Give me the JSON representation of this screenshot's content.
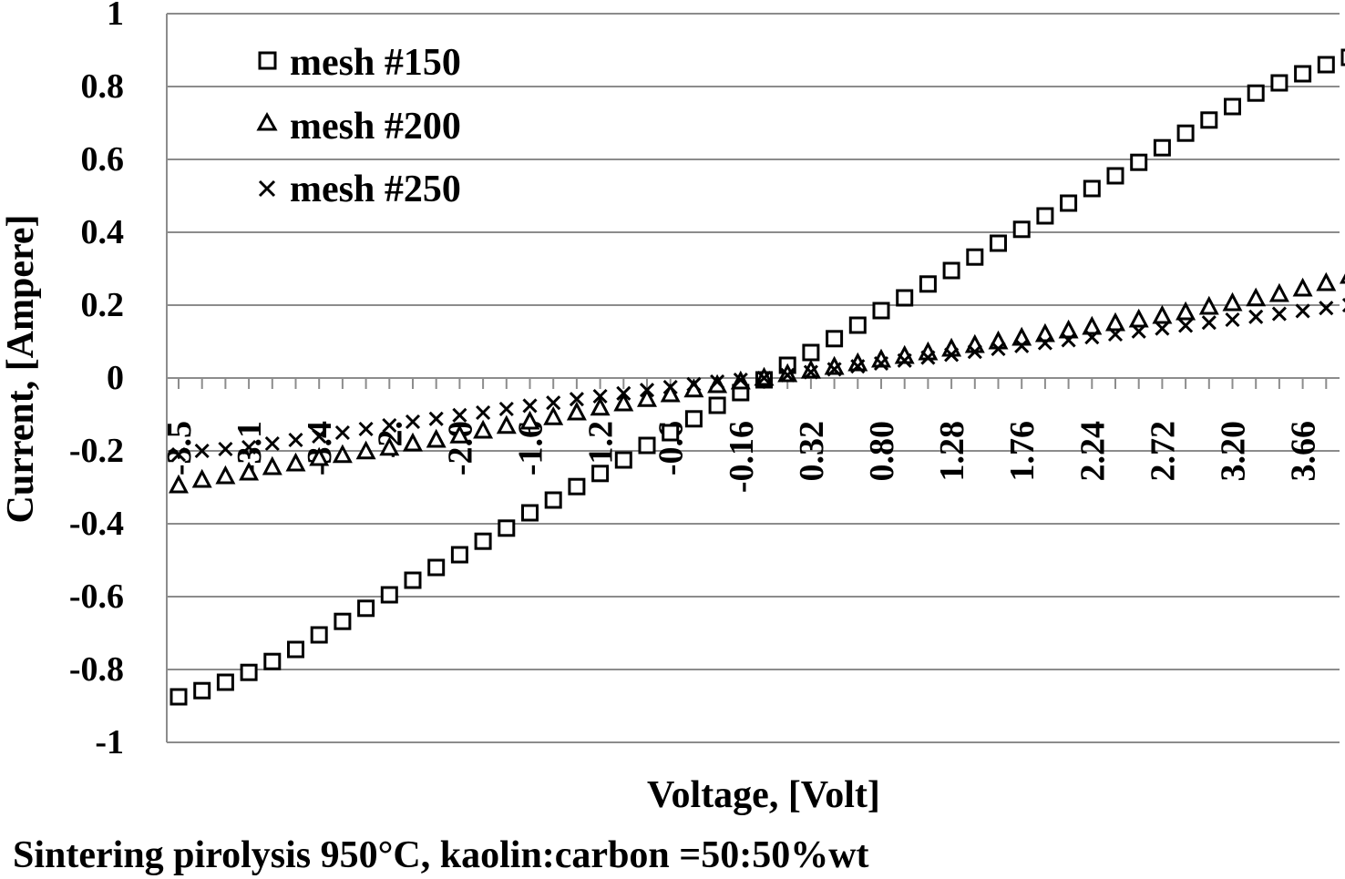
{
  "chart_data": {
    "type": "scatter",
    "title": "",
    "xlabel": "Voltage, [Volt]",
    "ylabel": "Current, [Ampere]",
    "caption": "Sintering pirolysis 950°C, kaolin:carbon =50:50%wt",
    "ylim": [
      -1,
      1
    ],
    "yticks": [
      "1",
      "0.8",
      "0.6",
      "0.4",
      "0.2",
      "0",
      "-0.2",
      "-0.4",
      "-0.6",
      "-0.8",
      "-1"
    ],
    "ytick_values": [
      1,
      0.8,
      0.6,
      0.4,
      0.2,
      0,
      -0.2,
      -0.4,
      -0.6,
      -0.8,
      -1
    ],
    "xtick_labels": [
      "-3.5",
      "-3.1",
      "-3.4",
      "-2.",
      "-2.0",
      "-1.6",
      "-1.2",
      "-0.6",
      "-0.16",
      "0.32",
      "0.80",
      "1.28",
      "1.76",
      "2.24",
      "2.72",
      "3.20",
      "3.66"
    ],
    "xtick_positions": [
      0,
      3,
      6,
      9,
      12,
      15,
      18,
      21,
      24,
      27,
      30,
      33,
      36,
      39,
      42,
      45,
      48
    ],
    "n_points": 51,
    "grid": true,
    "legend_position": "top-left",
    "series": [
      {
        "name": "mesh #150",
        "marker": "square",
        "values": [
          -0.875,
          -0.858,
          -0.835,
          -0.808,
          -0.778,
          -0.745,
          -0.705,
          -0.668,
          -0.632,
          -0.595,
          -0.555,
          -0.52,
          -0.485,
          -0.448,
          -0.412,
          -0.37,
          -0.335,
          -0.298,
          -0.262,
          -0.225,
          -0.185,
          -0.15,
          -0.112,
          -0.075,
          -0.04,
          -0.005,
          0.035,
          0.07,
          0.108,
          0.145,
          0.185,
          0.22,
          0.258,
          0.295,
          0.332,
          0.37,
          0.408,
          0.445,
          0.48,
          0.52,
          0.555,
          0.592,
          0.632,
          0.672,
          0.708,
          0.745,
          0.782,
          0.81,
          0.835,
          0.86,
          0.88
        ]
      },
      {
        "name": "mesh #200",
        "marker": "triangle",
        "values": [
          -0.295,
          -0.28,
          -0.27,
          -0.26,
          -0.245,
          -0.235,
          -0.22,
          -0.212,
          -0.202,
          -0.192,
          -0.18,
          -0.17,
          -0.158,
          -0.145,
          -0.132,
          -0.12,
          -0.108,
          -0.095,
          -0.082,
          -0.07,
          -0.058,
          -0.045,
          -0.032,
          -0.02,
          -0.01,
          0.0,
          0.01,
          0.02,
          0.03,
          0.04,
          0.05,
          0.06,
          0.07,
          0.08,
          0.09,
          0.1,
          0.11,
          0.12,
          0.13,
          0.14,
          0.15,
          0.16,
          0.17,
          0.18,
          0.195,
          0.205,
          0.218,
          0.23,
          0.245,
          0.26,
          0.28
        ]
      },
      {
        "name": "mesh #250",
        "marker": "x",
        "values": [
          -0.21,
          -0.2,
          -0.195,
          -0.19,
          -0.18,
          -0.17,
          -0.16,
          -0.15,
          -0.14,
          -0.13,
          -0.12,
          -0.112,
          -0.102,
          -0.095,
          -0.085,
          -0.076,
          -0.068,
          -0.058,
          -0.05,
          -0.042,
          -0.033,
          -0.025,
          -0.017,
          -0.01,
          -0.005,
          0.0,
          0.008,
          0.016,
          0.024,
          0.032,
          0.04,
          0.048,
          0.056,
          0.064,
          0.072,
          0.08,
          0.088,
          0.096,
          0.104,
          0.112,
          0.12,
          0.128,
          0.136,
          0.144,
          0.152,
          0.16,
          0.168,
          0.176,
          0.184,
          0.192,
          0.2
        ]
      }
    ]
  }
}
